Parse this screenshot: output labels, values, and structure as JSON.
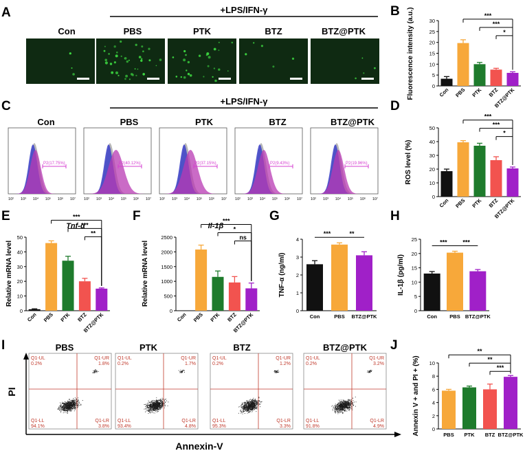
{
  "colors": {
    "black": "#111111",
    "orange": "#F7A83A",
    "green": "#1E7B2C",
    "red": "#F2534F",
    "purple": "#A020C8",
    "micro_bg": "#0f2a12",
    "micro_dot": "#3cd640",
    "flow_blue": "#3b3fc9",
    "flow_purple": "#b83ab3",
    "flow_gray": "#9a9a9a",
    "gate_magenta": "#d63fd0",
    "quad_red": "#c0392b",
    "dot_black": "#1a1a1a"
  },
  "panel_A": {
    "letter": "A",
    "treatment": "+LPS/IFN-γ",
    "labels": [
      "Con",
      "PBS",
      "PTK",
      "BTZ",
      "BTZ@PTK"
    ],
    "dot_counts": [
      3,
      38,
      26,
      5,
      4
    ]
  },
  "panel_C": {
    "letter": "C",
    "treatment": "+LPS/IFN-γ",
    "labels": [
      "Con",
      "PBS",
      "PTK",
      "BTZ",
      "BTZ@PTK"
    ],
    "gates": [
      "P2(17.75%)",
      "P2(40.12%)",
      "P2(37.15%)",
      "P2(9.43%)",
      "P2(19.96%)"
    ],
    "x_ticks": [
      "10²",
      "10³",
      "10⁴",
      "10⁵",
      "10⁶",
      "10⁷"
    ]
  },
  "panel_I": {
    "letter": "I",
    "labels": [
      "PBS",
      "PTK",
      "BTZ",
      "BTZ@PTK"
    ],
    "ylabel": "PI",
    "xlabel": "Annexin-V",
    "quadrants": [
      {
        "ul_label": "Q1-UL",
        "ul": "0.2%",
        "ur_label": "Q1-UR",
        "ur": "1.8%",
        "ll_label": "Q1-LL",
        "ll": "94.1%",
        "lr_label": "Q1-LR",
        "lr": "3.8%"
      },
      {
        "ul_label": "Q1-UL",
        "ul": "0.2%",
        "ur_label": "Q1-UR",
        "ur": "1.7%",
        "ll_label": "Q1-LL",
        "ll": "93.4%",
        "lr_label": "Q1-LR",
        "lr": "4.8%"
      },
      {
        "ul_label": "Q1-UL",
        "ul": "0.2%",
        "ur_label": "Q1-UR",
        "ur": "1.2%",
        "ll_label": "Q1-LL",
        "ll": "95.3%",
        "lr_label": "Q1-LR",
        "lr": "3.3%"
      },
      {
        "ul_label": "Q1-UL",
        "ul": "0.2%",
        "ur_label": "Q1-UR",
        "ur": "3.2%",
        "ll_label": "Q1-LL",
        "ll": "91.8%",
        "lr_label": "Q1-LR",
        "lr": "4.9%"
      }
    ]
  },
  "chart_data": [
    {
      "id": "B",
      "letter": "B",
      "type": "bar",
      "ylabel": "Fluorescence intensity (a.u.)",
      "categories": [
        "Con",
        "PBS",
        "PTK",
        "BTZ",
        "BTZ@PTK"
      ],
      "values": [
        3.3,
        19.7,
        10.0,
        7.5,
        6.0
      ],
      "errors": [
        1.0,
        1.5,
        0.8,
        0.6,
        0.5
      ],
      "ylim": [
        0,
        30
      ],
      "yticks": [
        0,
        5,
        10,
        15,
        20,
        25,
        30
      ],
      "colors": [
        "black",
        "orange",
        "green",
        "red",
        "purple"
      ],
      "rotate_labels": true,
      "sig": [
        {
          "from": 1,
          "to": 4,
          "label": "***"
        },
        {
          "from": 2,
          "to": 4,
          "label": "***"
        },
        {
          "from": 3,
          "to": 4,
          "label": "*"
        }
      ]
    },
    {
      "id": "D",
      "letter": "D",
      "type": "bar",
      "ylabel": "ROS level (%)",
      "categories": [
        "Con",
        "PBS",
        "PTK",
        "BTZ",
        "BTZ@PTK"
      ],
      "values": [
        18.5,
        39.5,
        37.0,
        26.5,
        20.5
      ],
      "errors": [
        1.5,
        1.2,
        1.8,
        2.5,
        1.0
      ],
      "ylim": [
        0,
        50
      ],
      "yticks": [
        0,
        10,
        20,
        30,
        40,
        50
      ],
      "colors": [
        "black",
        "orange",
        "green",
        "red",
        "purple"
      ],
      "rotate_labels": true,
      "sig": [
        {
          "from": 1,
          "to": 4,
          "label": "***"
        },
        {
          "from": 2,
          "to": 4,
          "label": "***"
        },
        {
          "from": 3,
          "to": 4,
          "label": "*"
        }
      ]
    },
    {
      "id": "E",
      "letter": "E",
      "type": "bar",
      "title": "Tnf-α",
      "ylabel": "Relative mRNA level",
      "categories": [
        "Con",
        "PBS",
        "PTK",
        "BTZ",
        "BTZ@PTK"
      ],
      "values": [
        1.0,
        46.0,
        34.0,
        20.0,
        15.0
      ],
      "errors": [
        0.3,
        1.5,
        3.0,
        2.0,
        0.5
      ],
      "ylim": [
        0,
        50
      ],
      "yticks": [
        0,
        10,
        20,
        30,
        40,
        50
      ],
      "colors": [
        "black",
        "orange",
        "green",
        "red",
        "purple"
      ],
      "rotate_labels": true,
      "sig": [
        {
          "from": 1,
          "to": 4,
          "label": "***"
        },
        {
          "from": 2,
          "to": 4,
          "label": "***"
        },
        {
          "from": 3,
          "to": 4,
          "label": "**"
        }
      ]
    },
    {
      "id": "F",
      "letter": "F",
      "type": "bar",
      "title": "Il-1β",
      "ylabel": "Relative mRNA level",
      "categories": [
        "Con",
        "PBS",
        "PTK",
        "BTZ",
        "BTZ@PTK"
      ],
      "values": [
        0,
        2080,
        1150,
        960,
        760
      ],
      "errors": [
        0,
        150,
        200,
        200,
        180
      ],
      "ylim": [
        0,
        2500
      ],
      "yticks": [
        0,
        500,
        1000,
        1500,
        2000,
        2500
      ],
      "colors": [
        "black",
        "orange",
        "green",
        "red",
        "purple"
      ],
      "rotate_labels": true,
      "sig": [
        {
          "from": 1,
          "to": 4,
          "label": "***"
        },
        {
          "from": 2,
          "to": 4,
          "label": "*"
        },
        {
          "from": 3,
          "to": 4,
          "label": "ns"
        }
      ]
    },
    {
      "id": "G",
      "letter": "G",
      "type": "bar",
      "ylabel": "TNF-α (ng/ml)",
      "categories": [
        "Con",
        "PBS",
        "BTZ@PTK"
      ],
      "values": [
        2.6,
        3.7,
        3.1
      ],
      "errors": [
        0.2,
        0.1,
        0.2
      ],
      "ylim": [
        0,
        4
      ],
      "yticks": [
        0,
        1,
        2,
        3,
        4
      ],
      "colors": [
        "black",
        "orange",
        "purple"
      ],
      "rotate_labels": false,
      "sig": [
        {
          "from": 0,
          "to": 1,
          "label": "***"
        },
        {
          "from": 1,
          "to": 2,
          "label": "**"
        }
      ]
    },
    {
      "id": "H",
      "letter": "H",
      "type": "bar",
      "ylabel": "IL-1β (pg/ml)",
      "categories": [
        "Con",
        "PBS",
        "BTZ@PTK"
      ],
      "values": [
        13.0,
        20.3,
        13.8
      ],
      "errors": [
        0.7,
        0.5,
        0.6
      ],
      "ylim": [
        0,
        25
      ],
      "yticks": [
        0,
        5,
        10,
        15,
        20,
        25
      ],
      "colors": [
        "black",
        "orange",
        "purple"
      ],
      "rotate_labels": false,
      "sig": [
        {
          "from": 0,
          "to": 1,
          "label": "***"
        },
        {
          "from": 1,
          "to": 2,
          "label": "***"
        }
      ]
    },
    {
      "id": "J",
      "letter": "J",
      "type": "bar",
      "ylabel": "Annexin V + and PI + (%)",
      "categories": [
        "PBS",
        "PTK",
        "BTZ",
        "BTZ@PTK"
      ],
      "values": [
        5.8,
        6.3,
        6.0,
        7.9
      ],
      "errors": [
        0.2,
        0.2,
        0.8,
        0.2
      ],
      "ylim": [
        0,
        10
      ],
      "yticks": [
        0,
        2,
        4,
        6,
        8,
        10
      ],
      "colors": [
        "orange",
        "green",
        "red",
        "purple"
      ],
      "rotate_labels": false,
      "sig": [
        {
          "from": 0,
          "to": 3,
          "label": "**"
        },
        {
          "from": 1,
          "to": 3,
          "label": "**"
        },
        {
          "from": 2,
          "to": 3,
          "label": "***"
        }
      ]
    }
  ]
}
